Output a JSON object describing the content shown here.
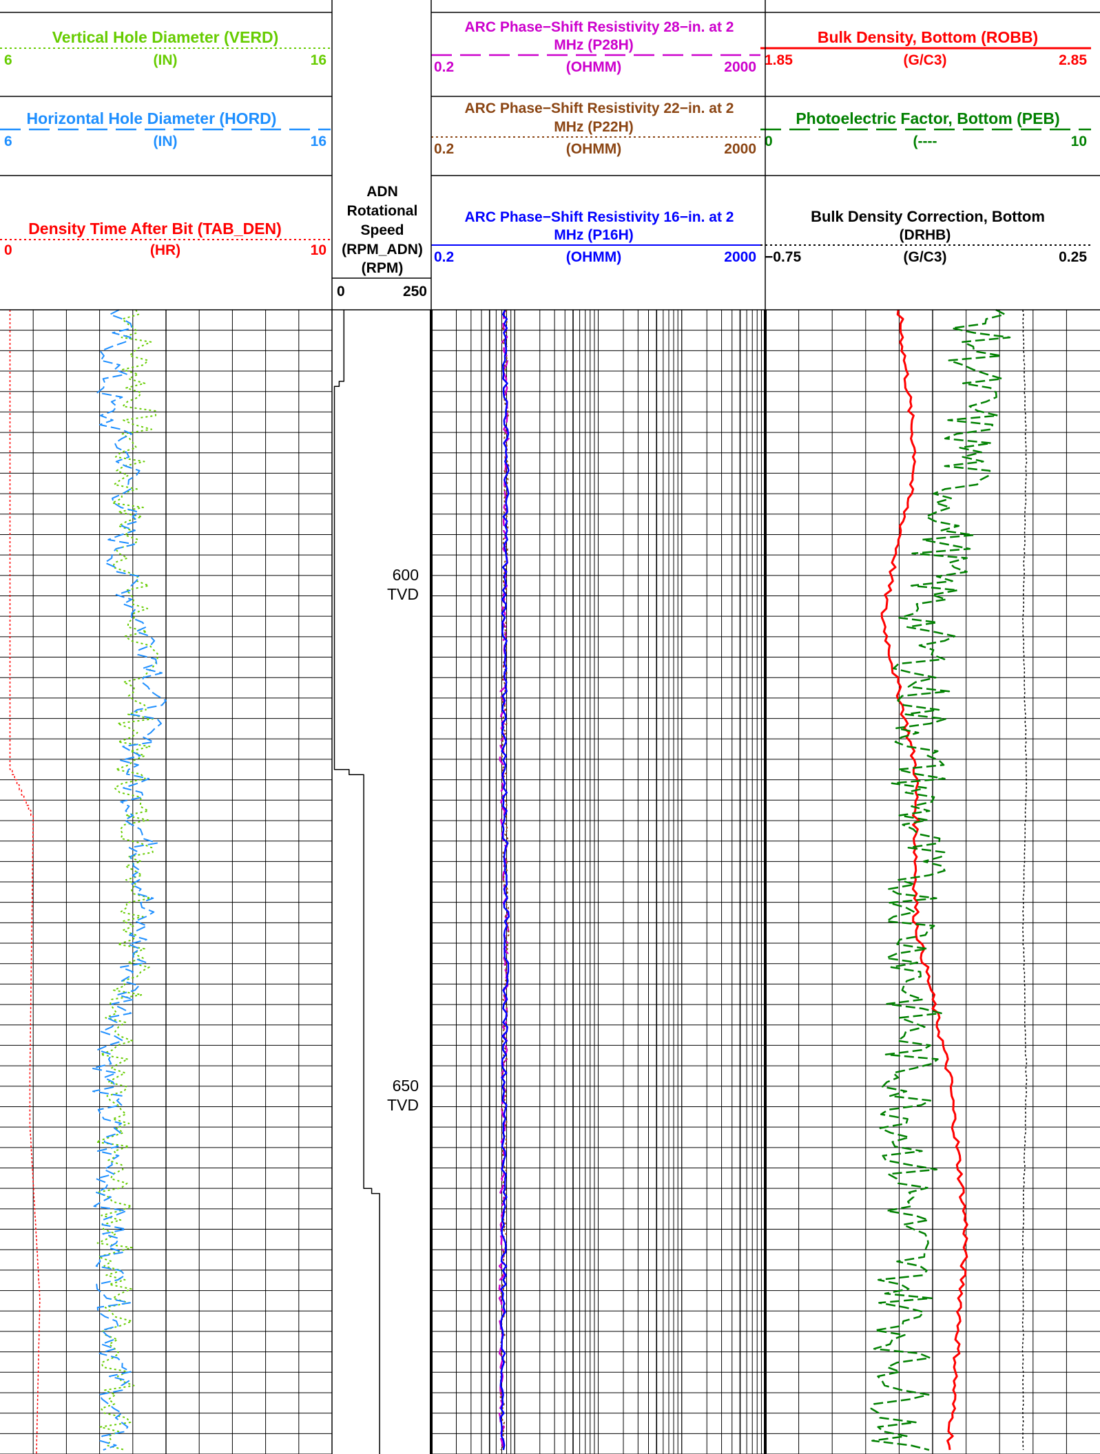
{
  "header": {
    "track1": [
      {
        "title": "Vertical Hole Diameter (VERD)",
        "unit": "(IN)",
        "left": "6",
        "right": "16",
        "color": "#66cc00",
        "style": "dotted"
      },
      {
        "title": "Horizontal Hole Diameter (HORD)",
        "unit": "(IN)",
        "left": "6",
        "right": "16",
        "color": "#1e8fff",
        "style": "dashed"
      },
      {
        "title": "Density Time After Bit (TAB_DEN)",
        "unit": "(HR)",
        "left": "0",
        "right": "10",
        "color": "#ff0000",
        "style": "dotted"
      }
    ],
    "depth_track": {
      "title_lines": [
        "ADN",
        "Rotational",
        "Speed",
        "(RPM_ADN)"
      ],
      "unit": "(RPM)",
      "left": "0",
      "right": "250",
      "color": "#000000"
    },
    "track2": [
      {
        "title_lines": [
          "ARC Phase−Shift Resistivity 28−in. at 2",
          "MHz (P28H)"
        ],
        "unit": "(OHMM)",
        "left": "0.2",
        "right": "2000",
        "color": "#cc00cc",
        "style": "dashed"
      },
      {
        "title_lines": [
          "ARC Phase−Shift Resistivity 22−in. at 2",
          "MHz (P22H)"
        ],
        "unit": "(OHMM)",
        "left": "0.2",
        "right": "2000",
        "color": "#8b4513",
        "style": "dotted"
      },
      {
        "title_lines": [
          "ARC Phase−Shift Resistivity 16−in. at 2",
          "MHz (P16H)"
        ],
        "unit": "(OHMM)",
        "left": "0.2",
        "right": "2000",
        "color": "#0000ff",
        "style": "solid"
      }
    ],
    "track3": [
      {
        "title": "Bulk Density, Bottom (ROBB)",
        "unit": "(G/C3)",
        "left": "1.85",
        "right": "2.85",
        "color": "#ff0000",
        "style": "solid"
      },
      {
        "title": "Photoelectric Factor, Bottom (PEB)",
        "unit": "(----",
        "left": "0",
        "right": "10",
        "color": "#008000",
        "style": "dashed"
      },
      {
        "title_lines": [
          "Bulk Density Correction, Bottom",
          "(DRHB)"
        ],
        "unit": "(G/C3)",
        "left": "−0.75",
        "right": "0.25",
        "color": "#000000",
        "style": "dotted"
      }
    ]
  },
  "depth_labels": [
    {
      "depth": 600,
      "value": "600",
      "unit": "TVD"
    },
    {
      "depth": 650,
      "value": "650",
      "unit": "TVD"
    }
  ],
  "chart_data": {
    "type": "line",
    "subtype": "well-log",
    "depth_range": [
      575,
      687
    ],
    "depth_unit": "TVD",
    "grid": true,
    "tracks": [
      {
        "name": "track1",
        "scale": "linear",
        "series": [
          {
            "name": "VERD",
            "range": [
              6,
              16
            ],
            "depth": [
              575,
              585,
              590,
              600,
              610,
              620,
              630,
              640,
              650,
              660,
              670,
              680,
              687
            ],
            "values": [
              10.1,
              10.2,
              9.8,
              9.9,
              10.3,
              9.9,
              10.3,
              10.0,
              9.3,
              9.4,
              9.5,
              9.6,
              9.5
            ]
          },
          {
            "name": "HORD",
            "range": [
              6,
              16
            ],
            "depth": [
              575,
              585,
              590,
              600,
              610,
              620,
              630,
              640,
              650,
              660,
              670,
              680,
              687
            ],
            "values": [
              9.6,
              9.2,
              9.9,
              9.6,
              10.8,
              10.0,
              10.4,
              10.0,
              9.2,
              9.3,
              9.4,
              9.5,
              9.3
            ]
          },
          {
            "name": "TAB_DEN",
            "range": [
              0,
              10
            ],
            "depth": [
              575,
              620,
              625,
              650,
              655,
              672,
              687
            ],
            "values": [
              0.3,
              0.3,
              1.0,
              0.9,
              0.9,
              1.2,
              1.1
            ]
          }
        ]
      },
      {
        "name": "depth_track",
        "scale": "linear",
        "series": [
          {
            "name": "RPM_ADN",
            "range": [
              0,
              250
            ],
            "depth": [
              575,
              582,
              583,
              620,
              621,
              661,
              662,
              687
            ],
            "values": [
              30,
              30,
              6,
              6,
              80,
              80,
              120,
              120
            ]
          }
        ]
      },
      {
        "name": "track2",
        "scale": "log",
        "series": [
          {
            "name": "P28H",
            "range": [
              0.2,
              2000
            ],
            "depth": [
              575,
              590,
              605,
              620,
              635,
              650,
              665,
              687
            ],
            "values": [
              1.5,
              1.6,
              1.5,
              1.4,
              1.6,
              1.5,
              1.4,
              1.4
            ]
          },
          {
            "name": "P22H",
            "range": [
              0.2,
              2000
            ],
            "depth": [
              575,
              590,
              605,
              620,
              635,
              650,
              665,
              687
            ],
            "values": [
              1.5,
              1.6,
              1.5,
              1.5,
              1.6,
              1.5,
              1.5,
              1.4
            ]
          },
          {
            "name": "P16H",
            "range": [
              0.2,
              2000
            ],
            "depth": [
              575,
              590,
              605,
              620,
              635,
              650,
              665,
              687
            ],
            "values": [
              1.5,
              1.6,
              1.5,
              1.5,
              1.6,
              1.5,
              1.5,
              1.4
            ]
          }
        ]
      },
      {
        "name": "track3",
        "scale": "linear",
        "series": [
          {
            "name": "ROBB",
            "range": [
              1.85,
              2.85
            ],
            "depth": [
              575,
              590,
              605,
              620,
              635,
              650,
              665,
              687
            ],
            "values": [
              2.25,
              2.3,
              2.2,
              2.3,
              2.3,
              2.4,
              2.45,
              2.4
            ]
          },
          {
            "name": "PEB",
            "range": [
              0,
              10
            ],
            "depth": [
              575,
              590,
              605,
              620,
              635,
              650,
              665,
              687
            ],
            "values": [
              6.5,
              6.0,
              4.8,
              4.6,
              4.5,
              4.3,
              4.3,
              4.0
            ]
          },
          {
            "name": "DRHB",
            "range": [
              -0.75,
              0.25
            ],
            "depth": [
              575,
              590,
              605,
              620,
              635,
              650,
              665,
              687
            ],
            "values": [
              0.02,
              0.03,
              0.02,
              0.03,
              0.02,
              0.03,
              0.02,
              0.02
            ]
          }
        ]
      }
    ]
  }
}
